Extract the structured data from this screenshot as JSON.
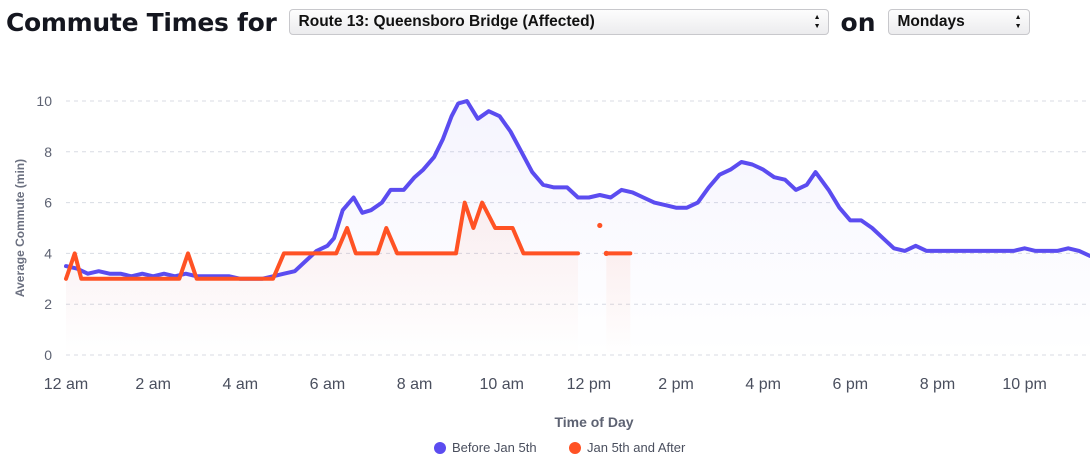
{
  "header": {
    "title": "Commute Times for",
    "route_select_value": "Route 13: Queensboro Bridge (Affected)",
    "connector": "on",
    "day_select_value": "Mondays"
  },
  "colors": {
    "before": "#5b4cf0",
    "after": "#ff5224",
    "grid": "#d8dbe3",
    "axis_text": "#5d6272"
  },
  "chart_data": {
    "type": "line",
    "xlabel": "Time of Day",
    "ylabel": "Average Commute (min)",
    "x_unit": "hours",
    "xlim": [
      0,
      23.5
    ],
    "ylim": [
      0,
      10
    ],
    "yticks": [
      0,
      2,
      4,
      6,
      8,
      10
    ],
    "xticks": [
      {
        "x": 0,
        "label": "12 am"
      },
      {
        "x": 2,
        "label": "2 am"
      },
      {
        "x": 4,
        "label": "4 am"
      },
      {
        "x": 6,
        "label": "6 am"
      },
      {
        "x": 8,
        "label": "8 am"
      },
      {
        "x": 10,
        "label": "10 am"
      },
      {
        "x": 12,
        "label": "12 pm"
      },
      {
        "x": 14,
        "label": "2 pm"
      },
      {
        "x": 16,
        "label": "4 pm"
      },
      {
        "x": 18,
        "label": "6 pm"
      },
      {
        "x": 20,
        "label": "8 pm"
      },
      {
        "x": 22,
        "label": "10 pm"
      }
    ],
    "grid": true,
    "legend": "bottom",
    "series": [
      {
        "name": "Before Jan 5th",
        "color": "#5b4cf0",
        "points": [
          [
            0,
            3.5
          ],
          [
            0.25,
            3.4
          ],
          [
            0.5,
            3.2
          ],
          [
            0.75,
            3.3
          ],
          [
            1,
            3.2
          ],
          [
            1.25,
            3.2
          ],
          [
            1.5,
            3.1
          ],
          [
            1.75,
            3.2
          ],
          [
            2,
            3.1
          ],
          [
            2.25,
            3.2
          ],
          [
            2.5,
            3.1
          ],
          [
            2.75,
            3.2
          ],
          [
            3,
            3.1
          ],
          [
            3.25,
            3.1
          ],
          [
            3.5,
            3.1
          ],
          [
            3.75,
            3.1
          ],
          [
            4,
            3.0
          ],
          [
            4.25,
            3.0
          ],
          [
            4.5,
            3.0
          ],
          [
            4.75,
            3.1
          ],
          [
            5,
            3.2
          ],
          [
            5.25,
            3.3
          ],
          [
            5.5,
            3.7
          ],
          [
            5.75,
            4.1
          ],
          [
            6,
            4.3
          ],
          [
            6.15,
            4.6
          ],
          [
            6.35,
            5.7
          ],
          [
            6.6,
            6.2
          ],
          [
            6.8,
            5.6
          ],
          [
            7,
            5.7
          ],
          [
            7.25,
            6.0
          ],
          [
            7.45,
            6.5
          ],
          [
            7.75,
            6.5
          ],
          [
            8,
            7.0
          ],
          [
            8.2,
            7.3
          ],
          [
            8.45,
            7.8
          ],
          [
            8.65,
            8.5
          ],
          [
            8.85,
            9.4
          ],
          [
            9,
            9.9
          ],
          [
            9.2,
            10.0
          ],
          [
            9.45,
            9.3
          ],
          [
            9.7,
            9.6
          ],
          [
            9.95,
            9.4
          ],
          [
            10.2,
            8.8
          ],
          [
            10.45,
            8.0
          ],
          [
            10.7,
            7.2
          ],
          [
            10.95,
            6.7
          ],
          [
            11.2,
            6.6
          ],
          [
            11.5,
            6.6
          ],
          [
            11.75,
            6.2
          ],
          [
            12,
            6.2
          ],
          [
            12.25,
            6.3
          ],
          [
            12.5,
            6.2
          ],
          [
            12.75,
            6.5
          ],
          [
            13,
            6.4
          ],
          [
            13.25,
            6.2
          ],
          [
            13.5,
            6.0
          ],
          [
            13.75,
            5.9
          ],
          [
            14,
            5.8
          ],
          [
            14.25,
            5.8
          ],
          [
            14.5,
            6.0
          ],
          [
            14.75,
            6.6
          ],
          [
            15,
            7.1
          ],
          [
            15.25,
            7.3
          ],
          [
            15.5,
            7.6
          ],
          [
            15.75,
            7.5
          ],
          [
            16,
            7.3
          ],
          [
            16.25,
            7.0
          ],
          [
            16.5,
            6.9
          ],
          [
            16.75,
            6.5
          ],
          [
            17,
            6.7
          ],
          [
            17.2,
            7.2
          ],
          [
            17.5,
            6.5
          ],
          [
            17.75,
            5.8
          ],
          [
            18,
            5.3
          ],
          [
            18.25,
            5.3
          ],
          [
            18.5,
            5.0
          ],
          [
            18.75,
            4.6
          ],
          [
            19,
            4.2
          ],
          [
            19.25,
            4.1
          ],
          [
            19.5,
            4.3
          ],
          [
            19.75,
            4.1
          ],
          [
            20,
            4.1
          ],
          [
            20.25,
            4.1
          ],
          [
            20.5,
            4.1
          ],
          [
            20.75,
            4.1
          ],
          [
            21,
            4.1
          ],
          [
            21.25,
            4.1
          ],
          [
            21.5,
            4.1
          ],
          [
            21.75,
            4.1
          ],
          [
            22,
            4.2
          ],
          [
            22.25,
            4.1
          ],
          [
            22.5,
            4.1
          ],
          [
            22.75,
            4.1
          ],
          [
            23,
            4.2
          ],
          [
            23.25,
            4.1
          ],
          [
            23.5,
            3.9
          ]
        ]
      },
      {
        "name": "Jan 5th and After",
        "color": "#ff5224",
        "points": [
          [
            0,
            3.0
          ],
          [
            0.1,
            3.5
          ],
          [
            0.2,
            4.0
          ],
          [
            0.35,
            3.0
          ],
          [
            2.6,
            3.0
          ],
          [
            2.8,
            4.0
          ],
          [
            3.0,
            3.0
          ],
          [
            4.75,
            3.0
          ],
          [
            5.0,
            4.0
          ],
          [
            6.2,
            4.0
          ],
          [
            6.45,
            5.0
          ],
          [
            6.65,
            4.0
          ],
          [
            7.15,
            4.0
          ],
          [
            7.35,
            5.0
          ],
          [
            7.6,
            4.0
          ],
          [
            8.95,
            4.0
          ],
          [
            9.15,
            6.0
          ],
          [
            9.35,
            5.0
          ],
          [
            9.55,
            6.0
          ],
          [
            9.85,
            5.0
          ],
          [
            10.25,
            5.0
          ],
          [
            10.5,
            4.0
          ],
          [
            11.75,
            4.0
          ],
          null,
          [
            12.25,
            5.1
          ],
          null,
          [
            12.4,
            4.0
          ],
          [
            12.95,
            4.0
          ]
        ]
      }
    ],
    "marks": [
      [
        12.25,
        5.1,
        "after"
      ],
      [
        12.4,
        4.0,
        "after"
      ]
    ]
  },
  "legend": [
    {
      "label": "Before Jan 5th",
      "color": "#5b4cf0"
    },
    {
      "label": "Jan 5th and After",
      "color": "#ff5224"
    }
  ]
}
